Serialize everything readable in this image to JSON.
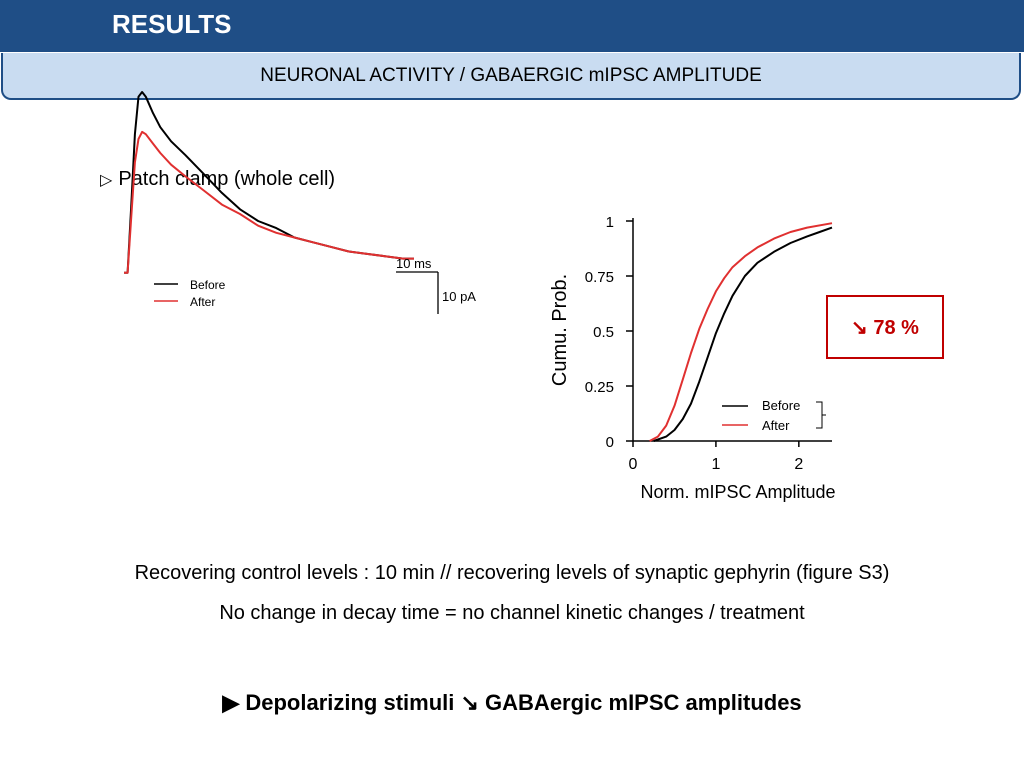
{
  "header": {
    "title": "RESULTS",
    "subtitle": "NEURONAL ACTIVITY / GABAERGIC mIPSC AMPLITUDE"
  },
  "bullet": {
    "icon": "▷",
    "text": "Patch clamp (whole cell)"
  },
  "chart_data": [
    {
      "type": "line",
      "legend": [
        "Before",
        "After"
      ],
      "legend_placement": "top-left",
      "scale_bar": {
        "time_label": "10 ms",
        "current_label": "10 pA"
      },
      "series": [
        {
          "name": "Before",
          "color": "#000000",
          "x": [
            0,
            1,
            2,
            3,
            4,
            5,
            6,
            8,
            10,
            13,
            17,
            22,
            27,
            32,
            37,
            42,
            47,
            52,
            57,
            62,
            67,
            72,
            77,
            80
          ],
          "y": [
            -1,
            -1,
            -30,
            -60,
            -76,
            -78,
            -76,
            -69,
            -63,
            -57,
            -51,
            -43,
            -35,
            -28,
            -23,
            -20,
            -16,
            -14,
            -12,
            -10,
            -9,
            -8,
            -7,
            -7
          ]
        },
        {
          "name": "After",
          "color": "#e03030",
          "x": [
            0,
            1,
            2,
            3,
            4,
            5,
            6,
            8,
            10,
            13,
            17,
            22,
            27,
            32,
            37,
            42,
            47,
            52,
            57,
            62,
            67,
            72,
            77,
            80
          ],
          "y": [
            -1,
            -1,
            -25,
            -48,
            -58,
            -61,
            -60,
            -56,
            -52,
            -47,
            -42,
            -36,
            -30,
            -26,
            -21,
            -18,
            -16,
            -14,
            -12,
            -10,
            -9,
            -8,
            -7,
            -7
          ]
        }
      ]
    },
    {
      "type": "line",
      "xlabel": "Norm. mIPSC Amplitude",
      "ylabel": "Cumu. Prob.",
      "xlim": [
        0,
        2.4
      ],
      "ylim": [
        0,
        1
      ],
      "xticks": [
        "0",
        "1",
        "2"
      ],
      "yticks": [
        "0",
        "0.25",
        "0.5",
        "0.75",
        "1"
      ],
      "legend": [
        "Before",
        "After"
      ],
      "legend_placement": "bottom-right",
      "series": [
        {
          "name": "Before",
          "color": "#000000",
          "x": [
            0.25,
            0.4,
            0.5,
            0.6,
            0.7,
            0.8,
            0.9,
            1.0,
            1.1,
            1.2,
            1.35,
            1.5,
            1.7,
            1.9,
            2.1,
            2.25,
            2.4
          ],
          "y": [
            0.0,
            0.02,
            0.05,
            0.1,
            0.17,
            0.27,
            0.38,
            0.49,
            0.58,
            0.66,
            0.75,
            0.81,
            0.86,
            0.9,
            0.93,
            0.95,
            0.97
          ]
        },
        {
          "name": "After",
          "color": "#e03030",
          "x": [
            0.2,
            0.3,
            0.4,
            0.5,
            0.6,
            0.7,
            0.8,
            0.9,
            1.0,
            1.1,
            1.2,
            1.35,
            1.5,
            1.7,
            1.9,
            2.1,
            2.4
          ],
          "y": [
            0.0,
            0.02,
            0.07,
            0.16,
            0.28,
            0.4,
            0.51,
            0.6,
            0.68,
            0.74,
            0.79,
            0.84,
            0.88,
            0.92,
            0.95,
            0.97,
            0.99
          ]
        }
      ]
    }
  ],
  "result_box": {
    "text": "↘ 78 %",
    "color": "#c00000"
  },
  "notes": {
    "line1": "Recovering control levels : 10 min // recovering levels of synaptic gephyrin (figure S3)",
    "line2": "No change in decay time = no channel kinetic changes / treatment"
  },
  "conclusion": "▶ Depolarizing stimuli ↘ GABAergic mIPSC amplitudes",
  "colors": {
    "header_bg": "#1f4e86",
    "subheader_bg": "#c9dcf1",
    "accent_red": "#c00000"
  }
}
